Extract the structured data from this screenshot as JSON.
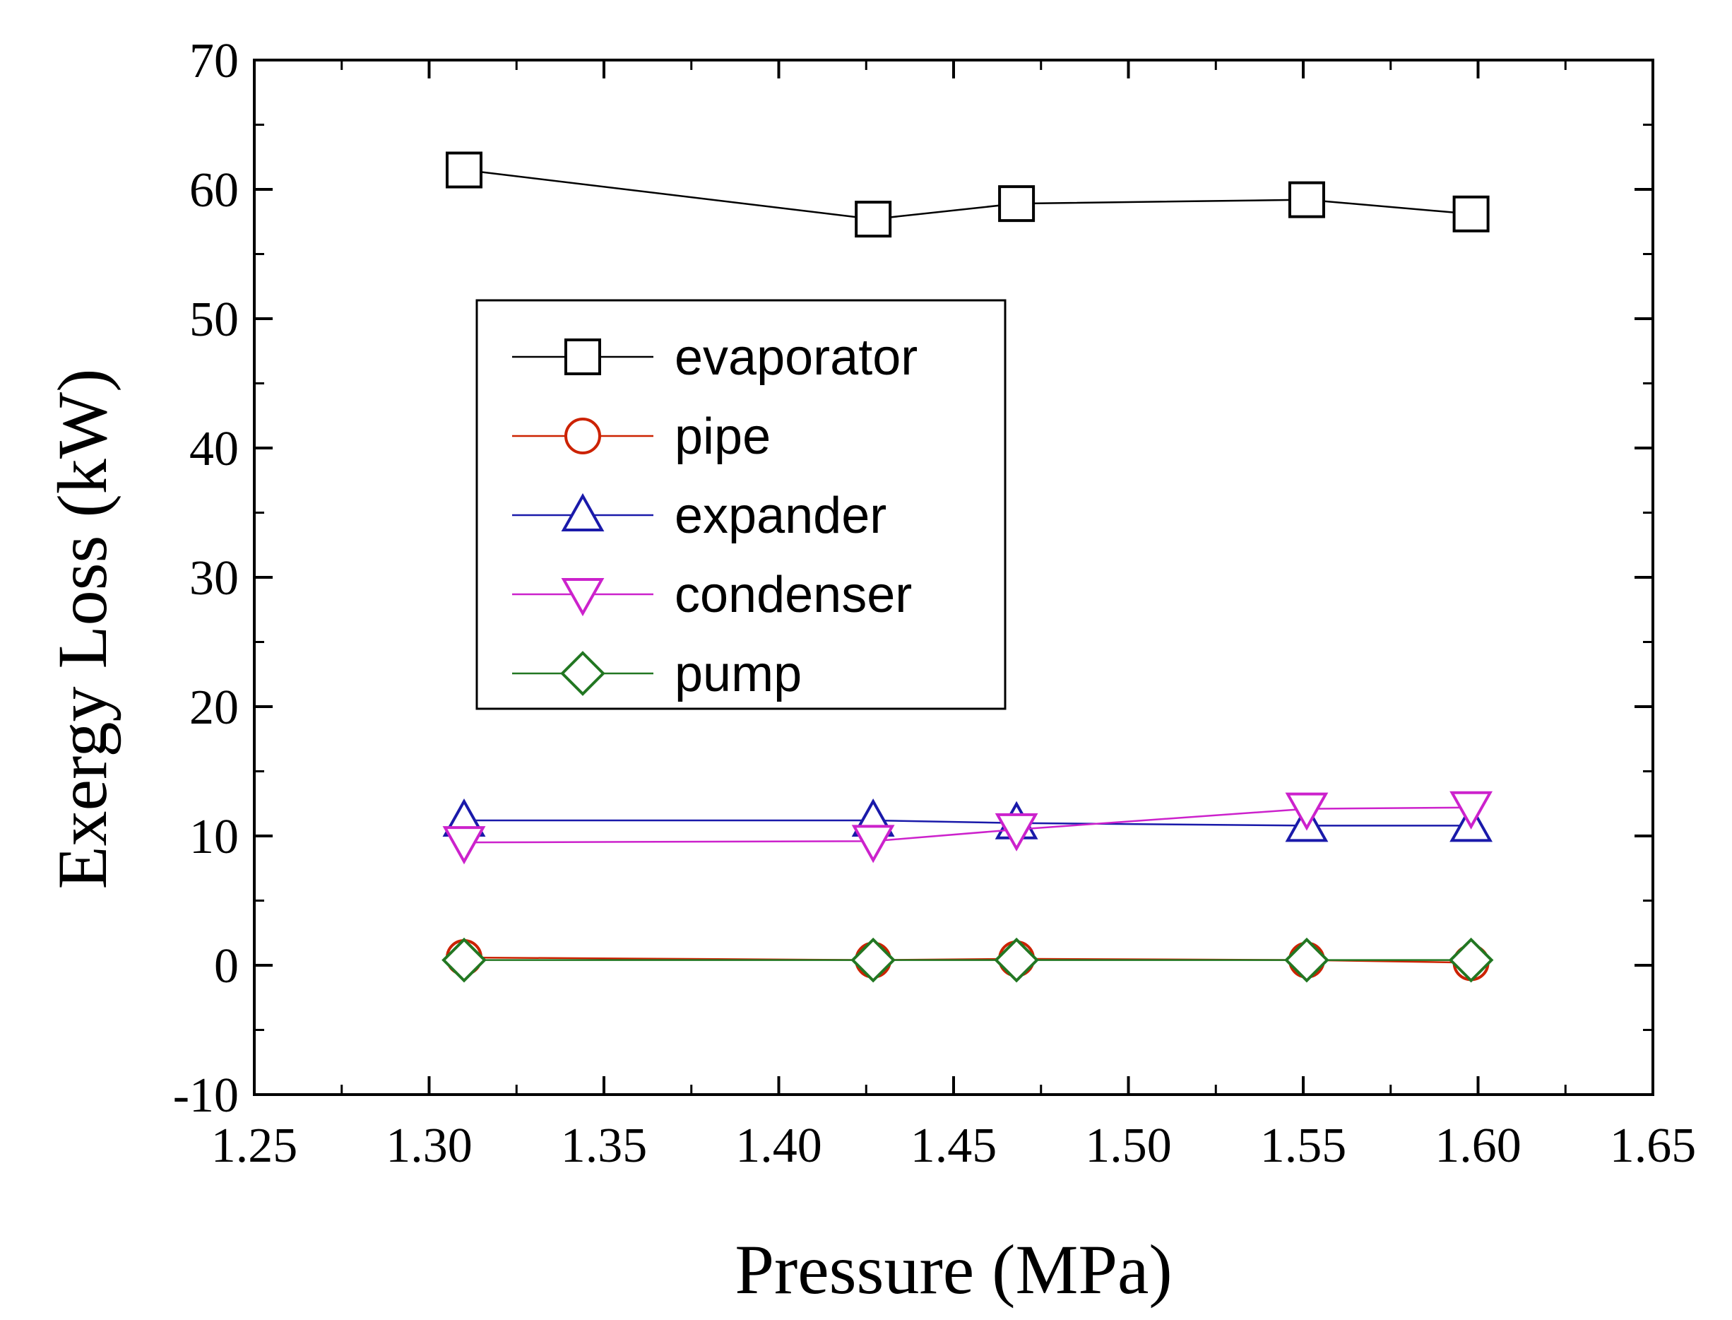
{
  "chart_data": {
    "type": "line",
    "title": "",
    "xlabel": "Pressure (MPa)",
    "ylabel": "Exergy Loss (kW)",
    "xlim": [
      1.25,
      1.65
    ],
    "ylim": [
      -10,
      70
    ],
    "xticks": [
      "1.25",
      "1.30",
      "1.35",
      "1.40",
      "1.45",
      "1.50",
      "1.55",
      "1.60",
      "1.65"
    ],
    "yticks": [
      "-10",
      "0",
      "10",
      "20",
      "30",
      "40",
      "50",
      "60",
      "70"
    ],
    "x": [
      1.31,
      1.427,
      1.468,
      1.551,
      1.598
    ],
    "series": [
      {
        "name": "evaporator",
        "marker": "square",
        "color": "#000000",
        "values": [
          61.5,
          57.7,
          58.9,
          59.2,
          58.1
        ]
      },
      {
        "name": "pipe",
        "marker": "circle",
        "color": "#cc2200",
        "values": [
          0.6,
          0.4,
          0.5,
          0.4,
          0.2
        ]
      },
      {
        "name": "expander",
        "marker": "triangle-up",
        "color": "#1a1aaa",
        "values": [
          11.2,
          11.2,
          11.0,
          10.8,
          10.8
        ]
      },
      {
        "name": "condenser",
        "marker": "triangle-down",
        "color": "#cc22cc",
        "values": [
          9.5,
          9.6,
          10.5,
          12.1,
          12.2
        ]
      },
      {
        "name": "pump",
        "marker": "diamond",
        "color": "#227722",
        "values": [
          0.4,
          0.4,
          0.4,
          0.4,
          0.4
        ]
      }
    ],
    "legend_position": "upper-left",
    "grid": false
  }
}
